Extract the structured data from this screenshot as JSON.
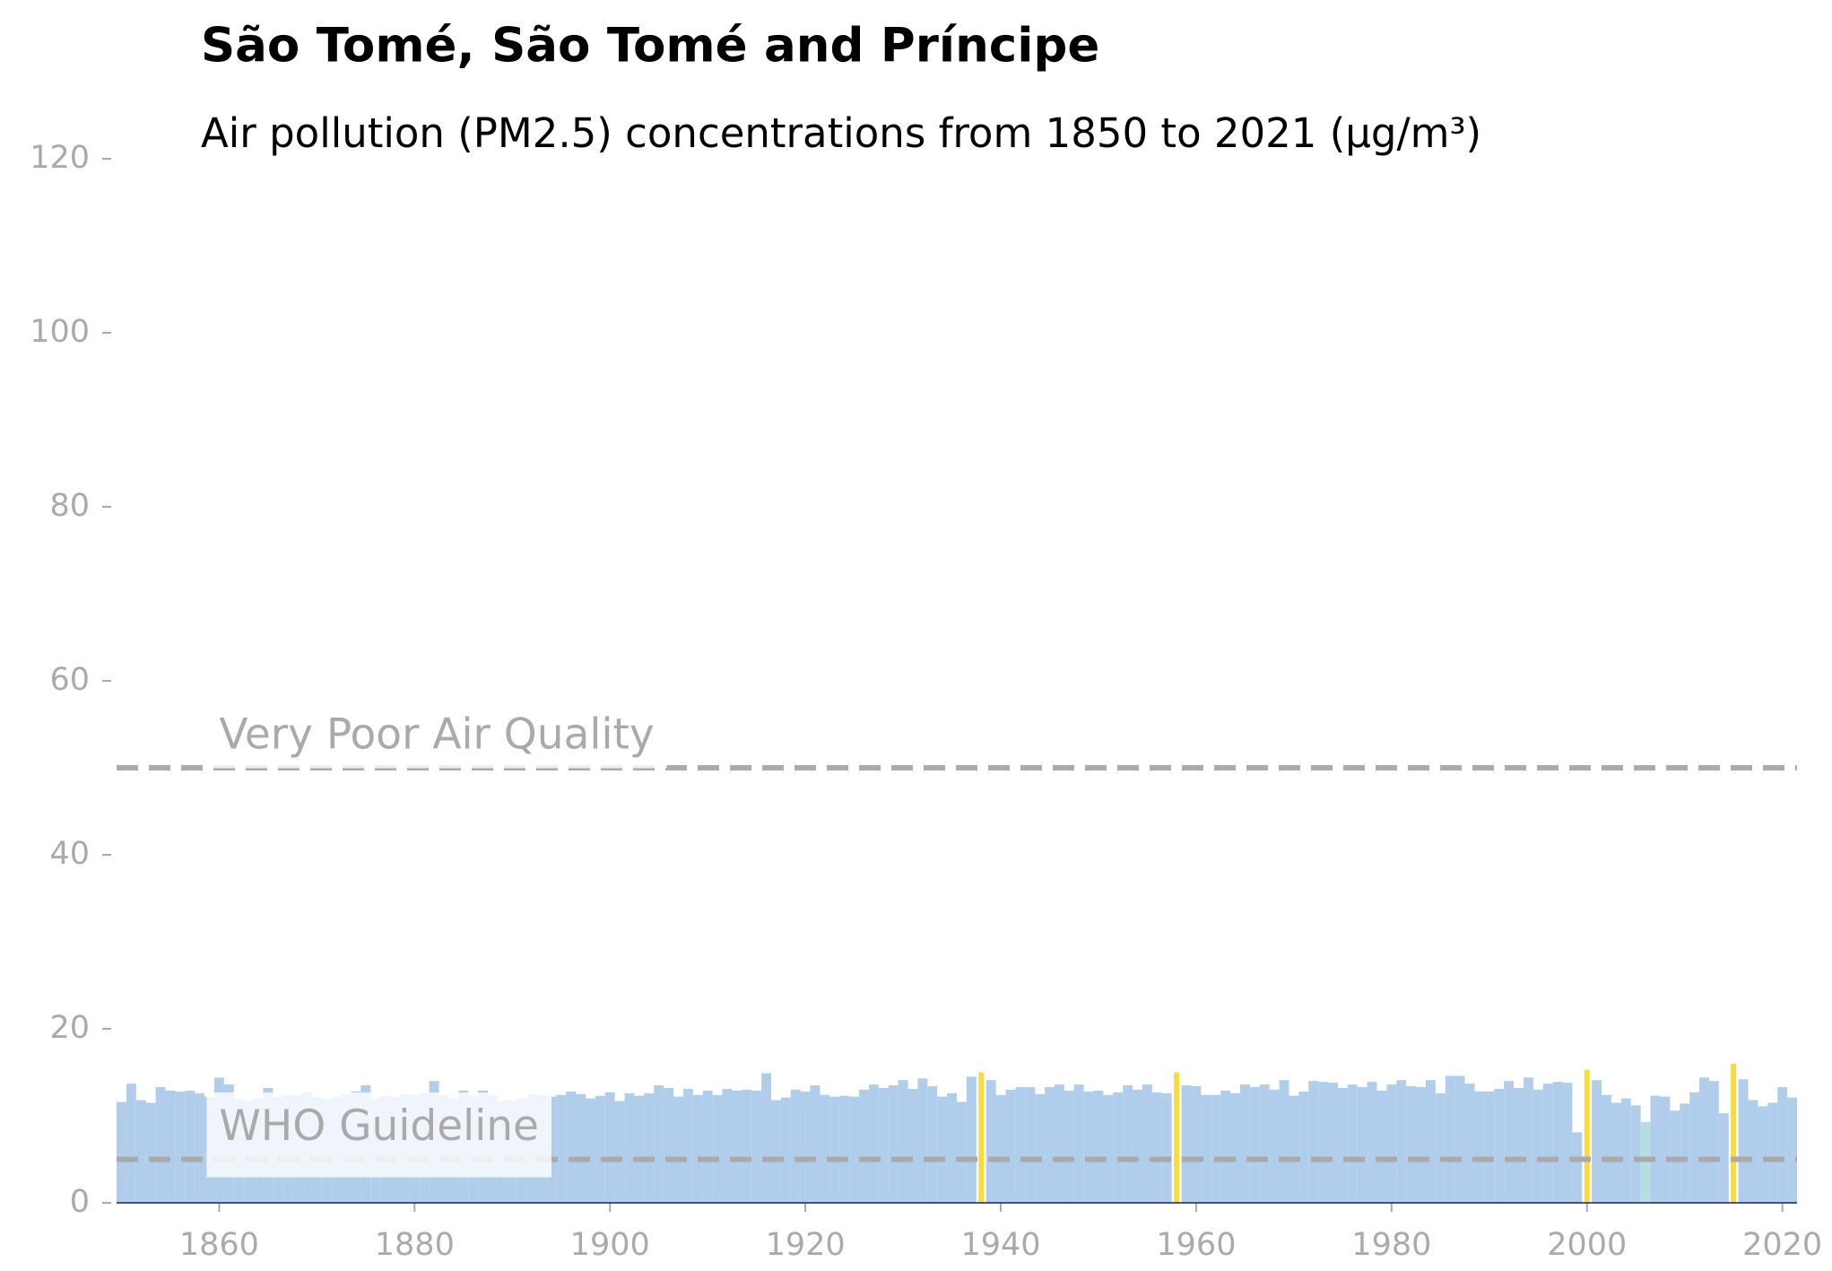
{
  "chart_data": {
    "type": "bar",
    "title": "São Tomé, São Tomé and Príncipe",
    "subtitle": "Air pollution (PM2.5) concentrations from 1850 to 2021 (µg/m³)",
    "x": [
      1850,
      1851,
      1852,
      1853,
      1854,
      1855,
      1856,
      1857,
      1858,
      1859,
      1860,
      1861,
      1862,
      1863,
      1864,
      1865,
      1866,
      1867,
      1868,
      1869,
      1870,
      1871,
      1872,
      1873,
      1874,
      1875,
      1876,
      1877,
      1878,
      1879,
      1880,
      1881,
      1882,
      1883,
      1884,
      1885,
      1886,
      1887,
      1888,
      1889,
      1890,
      1891,
      1892,
      1893,
      1894,
      1895,
      1896,
      1897,
      1898,
      1899,
      1900,
      1901,
      1902,
      1903,
      1904,
      1905,
      1906,
      1907,
      1908,
      1909,
      1910,
      1911,
      1912,
      1913,
      1914,
      1915,
      1916,
      1917,
      1918,
      1919,
      1920,
      1921,
      1922,
      1923,
      1924,
      1925,
      1926,
      1927,
      1928,
      1929,
      1930,
      1931,
      1932,
      1933,
      1934,
      1935,
      1936,
      1937,
      1938,
      1939,
      1940,
      1941,
      1942,
      1943,
      1944,
      1945,
      1946,
      1947,
      1948,
      1949,
      1950,
      1951,
      1952,
      1953,
      1954,
      1955,
      1956,
      1957,
      1958,
      1959,
      1960,
      1961,
      1962,
      1963,
      1964,
      1965,
      1966,
      1967,
      1968,
      1969,
      1970,
      1971,
      1972,
      1973,
      1974,
      1975,
      1976,
      1977,
      1978,
      1979,
      1980,
      1981,
      1982,
      1983,
      1984,
      1985,
      1986,
      1987,
      1988,
      1989,
      1990,
      1991,
      1992,
      1993,
      1994,
      1995,
      1996,
      1997,
      1998,
      1999,
      2000,
      2001,
      2002,
      2003,
      2004,
      2005,
      2006,
      2007,
      2008,
      2009,
      2010,
      2011,
      2012,
      2013,
      2014,
      2015,
      2016,
      2017,
      2018,
      2019,
      2020,
      2021
    ],
    "values": [
      11.6,
      13.7,
      11.8,
      11.5,
      13.3,
      12.9,
      12.8,
      12.9,
      12.6,
      12.2,
      14.4,
      13.6,
      12.0,
      11.8,
      12.0,
      13.2,
      12.2,
      12.4,
      12.4,
      12.7,
      12.2,
      11.9,
      12.2,
      12.5,
      12.8,
      13.5,
      12.0,
      12.3,
      12.2,
      12.5,
      12.4,
      12.6,
      14.0,
      12.4,
      12.0,
      12.9,
      12.2,
      12.9,
      12.4,
      11.7,
      11.8,
      12.0,
      12.5,
      12.4,
      12.2,
      12.4,
      12.8,
      12.5,
      12.0,
      12.3,
      12.7,
      11.7,
      12.6,
      12.3,
      12.6,
      13.5,
      13.2,
      12.2,
      13.1,
      12.4,
      12.9,
      12.4,
      13.1,
      12.9,
      13.0,
      12.9,
      14.9,
      11.8,
      12.1,
      13.0,
      12.8,
      13.5,
      12.4,
      12.2,
      12.3,
      12.2,
      13.0,
      13.6,
      13.2,
      13.5,
      14.1,
      13.1,
      14.3,
      13.4,
      12.2,
      12.6,
      11.6,
      14.5,
      15.0,
      14.1,
      12.4,
      13.0,
      13.3,
      13.3,
      12.5,
      13.3,
      13.6,
      12.9,
      13.6,
      12.8,
      12.9,
      12.4,
      12.7,
      13.5,
      13.0,
      13.6,
      12.7,
      12.6,
      15.0,
      13.5,
      13.4,
      12.4,
      12.4,
      12.9,
      12.6,
      13.6,
      13.3,
      13.6,
      13.0,
      14.1,
      12.3,
      12.8,
      14.0,
      13.9,
      13.8,
      13.2,
      13.6,
      13.3,
      13.9,
      12.9,
      13.6,
      14.1,
      13.4,
      13.3,
      14.1,
      12.6,
      14.6,
      14.6,
      13.7,
      12.8,
      12.8,
      13.1,
      14.0,
      13.2,
      14.4,
      13.0,
      13.7,
      13.9,
      13.8,
      8.1,
      15.3,
      14.1,
      12.4,
      11.5,
      12.0,
      11.2,
      9.3,
      12.3,
      12.2,
      10.6,
      11.4,
      12.7,
      14.4,
      14.0,
      10.3,
      16.0,
      14.2,
      11.8,
      11.1,
      11.5,
      13.3,
      12.1
    ],
    "color": "#b0cdec",
    "highlights": [
      {
        "x": 1938,
        "color": "#f7dc3c"
      },
      {
        "x": 1958,
        "color": "#f7dc3c"
      },
      {
        "x": 2000,
        "color": "#f7dc3c"
      },
      {
        "x": 2015,
        "color": "#f7dc3c"
      },
      {
        "x": 2006,
        "color": "#b3dfe0"
      }
    ],
    "reference_lines": [
      {
        "value": 50,
        "label": "Very Poor Air Quality"
      },
      {
        "value": 5,
        "label": "WHO Guideline"
      }
    ],
    "xlim": [
      1849.5,
      2021.5
    ],
    "xticks": [
      1860,
      1880,
      1900,
      1920,
      1940,
      1960,
      1980,
      2000,
      2020
    ],
    "ylim": [
      0,
      120
    ],
    "yticks": [
      0,
      20,
      40,
      60,
      80,
      100,
      120
    ]
  }
}
